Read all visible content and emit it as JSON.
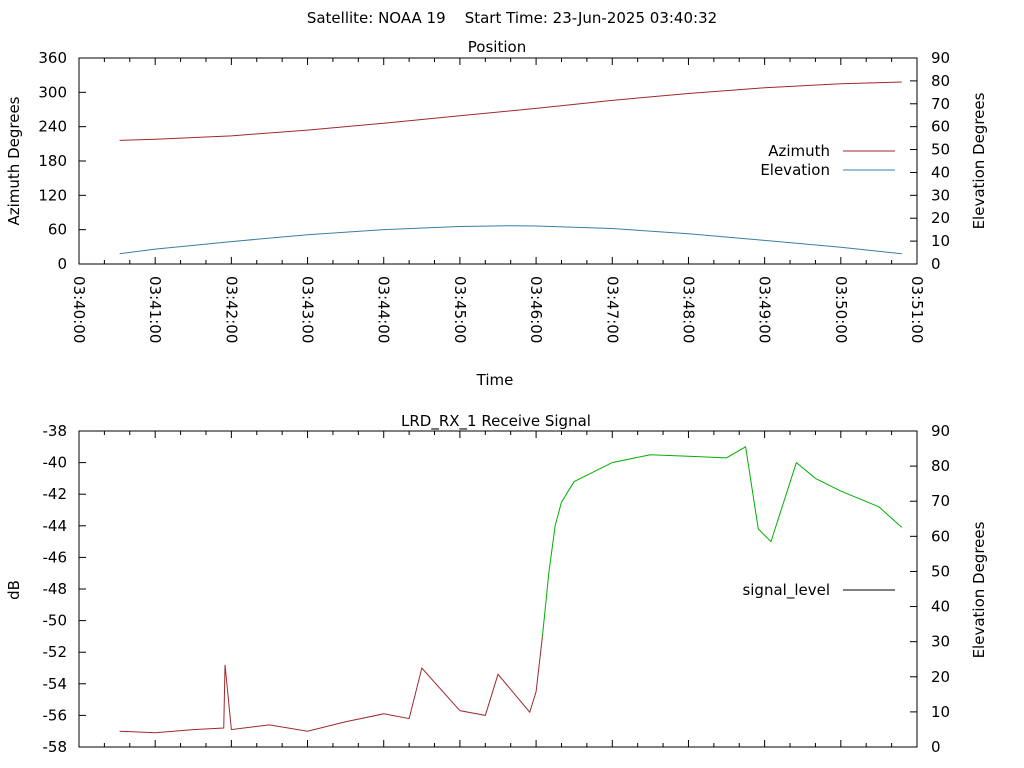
{
  "header": {
    "text": "Satellite: NOAA 19    Start Time: 23-Jun-2025 03:40:32"
  },
  "chart_data": [
    {
      "type": "line",
      "title": "Position",
      "xlabel": "Time",
      "ylabel": "Azimuth Degrees",
      "y2label": "Elevation Degrees",
      "x_ticks": [
        "03:40:00",
        "03:41:00",
        "03:42:00",
        "03:43:00",
        "03:44:00",
        "03:45:00",
        "03:46:00",
        "03:47:00",
        "03:48:00",
        "03:49:00",
        "03:50:00",
        "03:51:00"
      ],
      "x_range": [
        "03:40:00",
        "03:51:00"
      ],
      "ylim": [
        0,
        360
      ],
      "y_ticks": [
        0,
        60,
        120,
        180,
        240,
        300,
        360
      ],
      "y2lim": [
        0,
        90
      ],
      "y2_ticks": [
        0,
        10,
        20,
        30,
        40,
        50,
        60,
        70,
        80,
        90
      ],
      "legend_position": "right",
      "grid": false,
      "series": [
        {
          "name": "Azimuth",
          "axis": "y",
          "color": "#a0282d",
          "x": [
            "03:40:32",
            "03:41:00",
            "03:42:00",
            "03:43:00",
            "03:44:00",
            "03:45:00",
            "03:46:00",
            "03:47:00",
            "03:48:00",
            "03:49:00",
            "03:50:00",
            "03:50:48"
          ],
          "values": [
            216,
            218,
            224,
            234,
            246,
            259,
            272,
            286,
            298,
            308,
            315,
            318
          ]
        },
        {
          "name": "Elevation",
          "axis": "y2",
          "color": "#3c7da3",
          "x": [
            "03:40:32",
            "03:41:00",
            "03:42:00",
            "03:43:00",
            "03:44:00",
            "03:45:00",
            "03:45:40",
            "03:46:00",
            "03:47:00",
            "03:48:00",
            "03:49:00",
            "03:50:00",
            "03:50:48"
          ],
          "values": [
            4.5,
            6.5,
            9.8,
            12.8,
            15.0,
            16.4,
            16.7,
            16.6,
            15.5,
            13.2,
            10.3,
            7.3,
            4.5
          ]
        }
      ]
    },
    {
      "type": "line",
      "title": "LRD_RX_1 Receive Signal",
      "ylabel": "dB",
      "y2label": "Elevation Degrees",
      "ylim": [
        -58,
        -38
      ],
      "y_ticks": [
        -58,
        -56,
        -54,
        -52,
        -50,
        -48,
        -46,
        -44,
        -42,
        -40,
        -38
      ],
      "y2lim": [
        0,
        90
      ],
      "y2_ticks": [
        0,
        10,
        20,
        30,
        40,
        50,
        60,
        70,
        80,
        90
      ],
      "x_range": [
        "03:40:00",
        "03:51:00"
      ],
      "legend_position": "right",
      "grid": false,
      "series": [
        {
          "name": "signal_level",
          "low_color": "#a0282d",
          "high_color": "#00b000",
          "x": [
            "03:40:32",
            "03:41:00",
            "03:41:30",
            "03:41:54",
            "03:41:55",
            "03:42:00",
            "03:42:30",
            "03:43:00",
            "03:43:30",
            "03:44:00",
            "03:44:20",
            "03:44:30",
            "03:45:00",
            "03:45:20",
            "03:45:30",
            "03:45:55",
            "03:46:00",
            "03:46:05",
            "03:46:10",
            "03:46:15",
            "03:46:20",
            "03:46:30",
            "03:46:45",
            "03:47:00",
            "03:47:30",
            "03:48:00",
            "03:48:30",
            "03:48:45",
            "03:48:55",
            "03:49:05",
            "03:49:15",
            "03:49:25",
            "03:49:40",
            "03:50:00",
            "03:50:30",
            "03:50:48"
          ],
          "values": [
            -57.0,
            -57.1,
            -56.9,
            -56.8,
            -52.8,
            -56.9,
            -56.6,
            -57.0,
            -56.4,
            -55.9,
            -56.2,
            -53.0,
            -55.7,
            -56.0,
            -53.4,
            -55.8,
            -54.5,
            -51.0,
            -47.0,
            -44.0,
            -42.5,
            -41.2,
            -40.6,
            -40.0,
            -39.5,
            -39.6,
            -39.7,
            -39.0,
            -44.2,
            -45.0,
            -42.5,
            -40.0,
            -41.0,
            -41.8,
            -42.8,
            -44.1
          ]
        }
      ]
    }
  ]
}
